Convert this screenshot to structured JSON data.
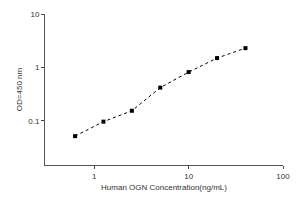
{
  "chart_data": {
    "type": "line",
    "x_label": "Human OGN Concentration(ng/mL)",
    "y_label": "OD=450 nm",
    "x": [
      0.625,
      1.25,
      2.5,
      5,
      10,
      20,
      40
    ],
    "values": [
      0.052,
      0.097,
      0.155,
      0.42,
      0.82,
      1.5,
      2.3
    ],
    "color": "#000000",
    "marker": "square",
    "line_style": "dot",
    "log": true,
    "xlim": [
      0.3,
      100
    ],
    "xticks": [
      1,
      10,
      100
    ],
    "ylim": [
      0.015,
      10
    ],
    "yticks": [
      0.1,
      1,
      10
    ],
    "grid": false
  }
}
